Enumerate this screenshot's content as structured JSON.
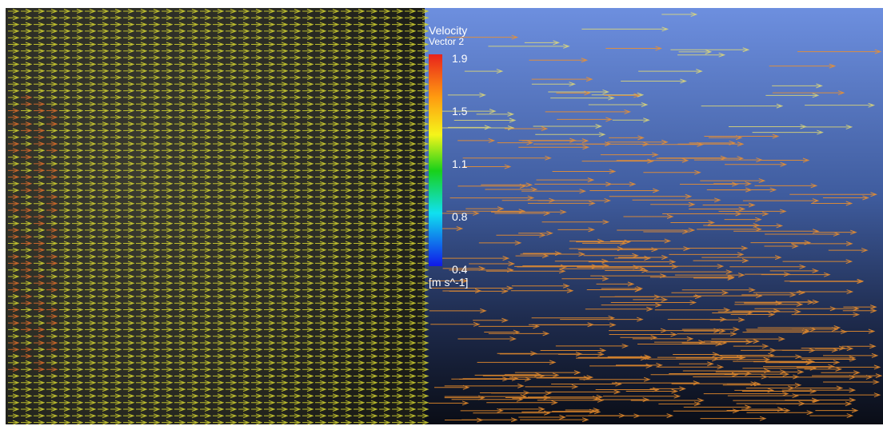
{
  "legend": {
    "title": "Velocity",
    "subtitle": "Vector 2",
    "ticks": [
      "1.9",
      "1.5",
      "1.1",
      "0.8",
      "0.4"
    ],
    "unit": "[m s^-1]"
  }
}
